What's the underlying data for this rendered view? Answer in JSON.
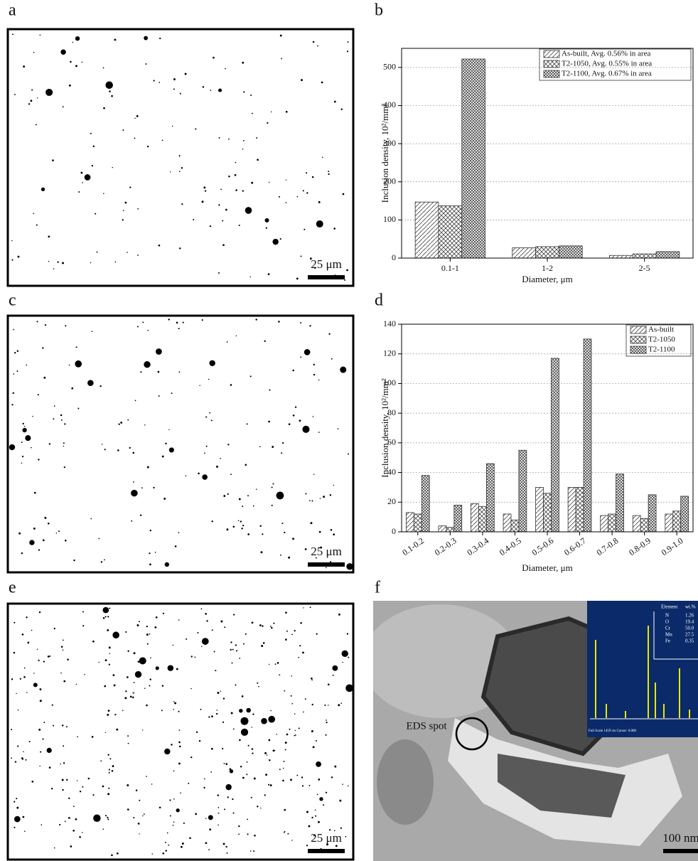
{
  "panels": {
    "a": {
      "label": "a",
      "scale_bar": "25 μm"
    },
    "c": {
      "label": "c",
      "scale_bar": "25 μm"
    },
    "e": {
      "label": "e",
      "scale_bar": "25 μm"
    },
    "f": {
      "label": "f",
      "scale_bar": "100 nm",
      "annotation": "EDS spot",
      "inset": {
        "header": [
          "Element",
          "wt.%"
        ],
        "rows": [
          [
            "N",
            "1.26"
          ],
          [
            "O",
            "19.4"
          ],
          [
            "Cr",
            "50.0"
          ],
          [
            "Mn",
            "27.5"
          ],
          [
            "Fe",
            "0.35"
          ]
        ],
        "footer": "Full Scale 1459 cts Cursor: 0.000"
      }
    }
  },
  "chart_data": [
    {
      "type": "bar",
      "label": "b",
      "x_label": "Diameter, μm",
      "y_label": "Inclusion density, 10²/mm²",
      "categories": [
        "0.1-1",
        "1-2",
        "2-5"
      ],
      "series": [
        {
          "name": "As-built,  Avg. 0.56% in area",
          "color": "#444444",
          "pattern": "diagonal",
          "values": [
            147,
            27,
            7
          ]
        },
        {
          "name": "T2-1050, Avg. 0.55% in area",
          "color": "#444444",
          "pattern": "cross",
          "values": [
            137,
            30,
            11
          ]
        },
        {
          "name": "T2-1100, Avg. 0.67% in area",
          "color": "#444444",
          "pattern": "dense",
          "values": [
            522,
            32,
            17
          ]
        }
      ],
      "ylim": [
        0,
        550
      ],
      "yticks": [
        0,
        100,
        200,
        300,
        400,
        500
      ],
      "grid": true,
      "legend": "top-right"
    },
    {
      "type": "bar",
      "label": "d",
      "x_label": "Diameter, μm",
      "y_label": "Inclusion density, 10²/mm²",
      "categories": [
        "0.1-0.2",
        "0.2-0.3",
        "0.3-0.4",
        "0.4-0.5",
        "0.5-0.6",
        "0.6-0.7",
        "0.7-0.8",
        "0.8-0.9",
        "0.9-1.0"
      ],
      "series": [
        {
          "name": "As-built",
          "color": "#444444",
          "pattern": "diagonal",
          "values": [
            13,
            4,
            19,
            12,
            30,
            30,
            11,
            11,
            12
          ]
        },
        {
          "name": "T2-1050",
          "color": "#444444",
          "pattern": "cross",
          "values": [
            12,
            3,
            17,
            8,
            26,
            30,
            12,
            9,
            14
          ]
        },
        {
          "name": "T2-1100",
          "color": "#444444",
          "pattern": "dense",
          "values": [
            38,
            18,
            46,
            55,
            117,
            130,
            39,
            25,
            24
          ]
        }
      ],
      "ylim": [
        0,
        140
      ],
      "yticks": [
        0,
        20,
        40,
        60,
        80,
        100,
        120,
        140
      ],
      "grid": true,
      "legend": "top-right",
      "rotate_x_labels": true
    }
  ]
}
